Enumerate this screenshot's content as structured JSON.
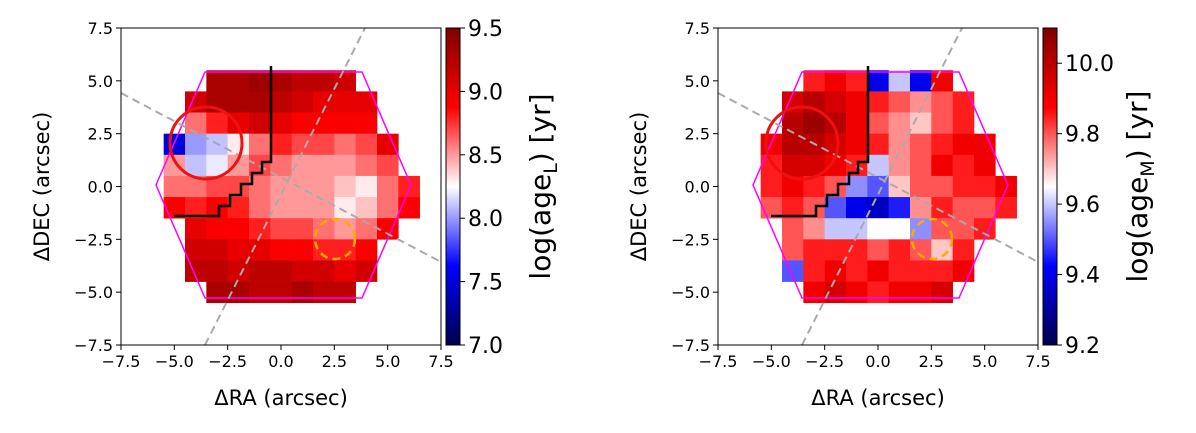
{
  "chart_data": [
    {
      "type": "heatmap",
      "colormap": "seismic",
      "xlabel": "ΔRA (arcsec)",
      "ylabel": "ΔDEC (arcsec)",
      "colorbar_label": "log(age",
      "colorbar_label_sub": "L",
      "colorbar_label_end": ") [yr]",
      "x": [
        -5,
        -4,
        -3,
        -2,
        -1,
        0,
        1,
        2,
        3,
        4,
        5,
        6
      ],
      "y": [
        5,
        4,
        3,
        2,
        1,
        0,
        -1,
        -2,
        -3,
        -4,
        -5
      ],
      "z": [
        [
          null,
          null,
          9.3,
          9.3,
          9.35,
          9.3,
          9.2,
          9.2,
          9.1,
          null,
          null,
          null
        ],
        [
          null,
          9.1,
          9.3,
          9.3,
          9.3,
          9.2,
          9.1,
          9.0,
          9.0,
          9.0,
          null,
          null
        ],
        [
          null,
          8.6,
          8.8,
          9.0,
          9.1,
          9.0,
          8.9,
          8.9,
          8.9,
          8.9,
          null,
          null
        ],
        [
          7.5,
          8.0,
          8.1,
          8.3,
          8.6,
          8.8,
          8.7,
          8.7,
          8.6,
          8.7,
          9.0,
          null
        ],
        [
          8.5,
          8.1,
          8.2,
          8.5,
          8.7,
          8.6,
          8.5,
          8.5,
          8.5,
          8.6,
          8.7,
          null
        ],
        [
          8.6,
          8.6,
          8.7,
          8.7,
          8.6,
          8.5,
          8.5,
          8.5,
          8.4,
          8.3,
          8.6,
          8.8
        ],
        [
          8.9,
          8.8,
          8.9,
          8.8,
          8.6,
          8.5,
          8.5,
          8.5,
          8.3,
          8.4,
          8.6,
          8.9
        ],
        [
          null,
          9.0,
          8.9,
          8.9,
          8.8,
          8.7,
          8.7,
          8.6,
          8.5,
          8.6,
          8.9,
          null
        ],
        [
          null,
          9.1,
          9.1,
          9.0,
          9.0,
          8.9,
          8.9,
          8.8,
          8.8,
          8.9,
          null,
          null
        ],
        [
          null,
          9.2,
          9.2,
          9.1,
          9.2,
          9.2,
          9.1,
          9.1,
          9.0,
          9.1,
          null,
          null
        ],
        [
          null,
          null,
          9.3,
          9.3,
          9.2,
          9.2,
          9.3,
          9.2,
          9.2,
          null,
          null,
          null
        ]
      ],
      "xlim": [
        -7.5,
        7.5
      ],
      "ylim": [
        -7.5,
        7.5
      ],
      "xticks": [
        {
          "value": -7.5,
          "label": "−7.5"
        },
        {
          "value": -5,
          "label": "−5.0"
        },
        {
          "value": -2.5,
          "label": "−2.5"
        },
        {
          "value": 0,
          "label": "0.0"
        },
        {
          "value": 2.5,
          "label": "2.5"
        },
        {
          "value": 5,
          "label": "5.0"
        },
        {
          "value": 7.5,
          "label": "7.5"
        }
      ],
      "yticks": [
        {
          "value": -7.5,
          "label": "−7.5"
        },
        {
          "value": -5,
          "label": "−5.0"
        },
        {
          "value": -2.5,
          "label": "−2.5"
        },
        {
          "value": 0,
          "label": "0.0"
        },
        {
          "value": 2.5,
          "label": "2.5"
        },
        {
          "value": 5,
          "label": "5.0"
        },
        {
          "value": 7.5,
          "label": "7.5"
        }
      ],
      "clim": [
        7.0,
        9.5
      ],
      "cticks": [
        {
          "value": 7,
          "label": "7.0"
        },
        7.5,
        {
          "value": 8,
          "label": "8.0"
        },
        8.5,
        {
          "value": 9,
          "label": "9.0"
        },
        9.5
      ]
    },
    {
      "type": "heatmap",
      "colormap": "seismic",
      "xlabel": "ΔRA (arcsec)",
      "ylabel": "ΔDEC (arcsec)",
      "colorbar_label": "log(age",
      "colorbar_label_sub": "M",
      "colorbar_label_end": ") [yr]",
      "x": [
        -5,
        -4,
        -3,
        -2,
        -1,
        0,
        1,
        2,
        3,
        4,
        5,
        6
      ],
      "y": [
        5,
        4,
        3,
        2,
        1,
        0,
        -1,
        -2,
        -3,
        -4,
        -5
      ],
      "z": [
        [
          null,
          null,
          9.85,
          9.9,
          9.85,
          9.4,
          9.6,
          9.4,
          9.9,
          null,
          null,
          null
        ],
        [
          null,
          9.95,
          10.0,
          9.95,
          9.9,
          9.85,
          9.8,
          9.75,
          9.8,
          9.85,
          null,
          null
        ],
        [
          null,
          10.0,
          10.05,
          10.0,
          9.9,
          9.8,
          9.75,
          9.7,
          9.8,
          9.85,
          null,
          null
        ],
        [
          9.9,
          10.0,
          10.0,
          9.95,
          9.9,
          9.85,
          9.75,
          9.8,
          9.85,
          9.9,
          9.9,
          null
        ],
        [
          9.85,
          9.95,
          9.95,
          9.9,
          9.85,
          9.6,
          9.75,
          9.8,
          9.9,
          9.85,
          9.9,
          null
        ],
        [
          9.85,
          9.9,
          9.85,
          9.8,
          9.55,
          9.5,
          9.7,
          9.8,
          9.8,
          9.85,
          9.85,
          9.9
        ],
        [
          9.8,
          9.85,
          9.8,
          9.5,
          9.4,
          9.35,
          9.45,
          9.75,
          9.85,
          9.8,
          9.8,
          9.85
        ],
        [
          null,
          9.8,
          9.75,
          9.6,
          9.6,
          9.65,
          9.65,
          9.55,
          9.8,
          9.8,
          9.85,
          null
        ],
        [
          null,
          9.8,
          9.85,
          9.85,
          9.85,
          9.8,
          9.85,
          9.8,
          9.7,
          9.85,
          null,
          null
        ],
        [
          null,
          9.5,
          9.85,
          9.9,
          9.85,
          9.9,
          9.85,
          9.85,
          9.85,
          9.9,
          null,
          null
        ],
        [
          null,
          null,
          9.9,
          9.95,
          9.9,
          9.85,
          9.9,
          9.9,
          9.95,
          null,
          null,
          null
        ]
      ],
      "xlim": [
        -7.5,
        7.5
      ],
      "ylim": [
        -7.5,
        7.5
      ],
      "xticks": [
        {
          "value": -7.5,
          "label": "−7.5"
        },
        {
          "value": -5,
          "label": "−5.0"
        },
        {
          "value": -2.5,
          "label": "−2.5"
        },
        {
          "value": 0,
          "label": "0.0"
        },
        {
          "value": 2.5,
          "label": "2.5"
        },
        {
          "value": 5,
          "label": "5.0"
        },
        {
          "value": 7.5,
          "label": "7.5"
        }
      ],
      "yticks": [
        {
          "value": -7.5,
          "label": "−7.5"
        },
        {
          "value": -5,
          "label": "−5.0"
        },
        {
          "value": -2.5,
          "label": "−2.5"
        },
        {
          "value": 0,
          "label": "0.0"
        },
        {
          "value": 2.5,
          "label": "2.5"
        },
        {
          "value": 5,
          "label": "5.0"
        },
        {
          "value": 7.5,
          "label": "7.5"
        }
      ],
      "clim": [
        9.2,
        10.1
      ],
      "cticks": [
        9.2,
        9.4,
        9.6,
        9.8,
        {
          "value": 10,
          "label": "10.0"
        }
      ]
    }
  ]
}
